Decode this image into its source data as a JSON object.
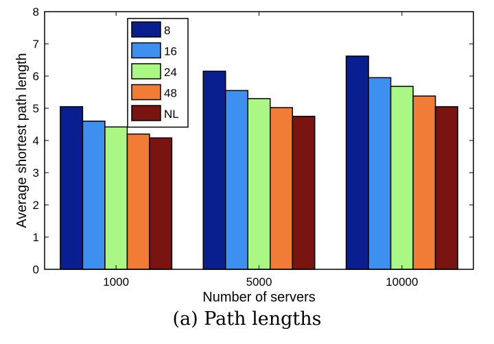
{
  "caption": "(a) Path lengths",
  "chart_data": {
    "type": "bar",
    "xlabel": "Number of servers",
    "ylabel": "Average shortest path length",
    "categories": [
      "1000",
      "5000",
      "10000"
    ],
    "ylim": [
      0,
      8
    ],
    "yticks": [
      0,
      1,
      2,
      3,
      4,
      5,
      6,
      7,
      8
    ],
    "legend_position": "top-left",
    "grid": false,
    "series": [
      {
        "name": "8",
        "color": "#0a1f8f",
        "values": [
          5.05,
          6.15,
          6.62
        ]
      },
      {
        "name": "16",
        "color": "#3d8ff0",
        "values": [
          4.6,
          5.55,
          5.95
        ]
      },
      {
        "name": "24",
        "color": "#aaf786",
        "values": [
          4.42,
          5.3,
          5.68
        ]
      },
      {
        "name": "48",
        "color": "#f07c35",
        "values": [
          4.2,
          5.02,
          5.38
        ]
      },
      {
        "name": "NL",
        "color": "#7a1410",
        "values": [
          4.08,
          4.75,
          5.05
        ]
      }
    ]
  }
}
